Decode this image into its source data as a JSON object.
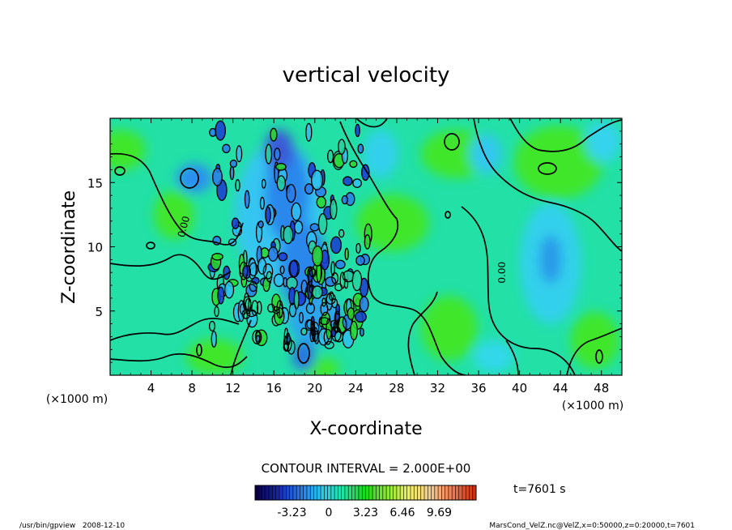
{
  "chart_data": {
    "type": "heatmap",
    "title": "vertical velocity",
    "xlabel": "X-coordinate",
    "ylabel": "Z-coordinate",
    "x_unit": "(×1000 m)",
    "y_unit": "(×1000 m)",
    "xlim": [
      0,
      50
    ],
    "ylim": [
      0,
      20
    ],
    "x_ticks": [
      4,
      8,
      12,
      16,
      20,
      24,
      28,
      32,
      36,
      40,
      44,
      48
    ],
    "y_ticks": [
      5,
      10,
      15
    ],
    "contour_interval_label": "CONTOUR INTERVAL = 2.000E+00",
    "contour_labels": [
      {
        "text": "0.00",
        "x": 7.5,
        "y": 11.5,
        "rotate": -75
      },
      {
        "text": "0.00",
        "x": 38.6,
        "y": 8.0,
        "rotate": -90
      }
    ],
    "colorbar": {
      "min": -6.46,
      "max": 12.92,
      "ticks": [
        "-3.23",
        "0",
        "3.23",
        "6.46",
        "9.69"
      ],
      "tick_values": [
        -3.23,
        0,
        3.23,
        6.46,
        9.69
      ],
      "colors": [
        "#0a0040",
        "#1428b4",
        "#2878e8",
        "#28c8f0",
        "#1ee6a0",
        "#19d819",
        "#8ce632",
        "#f0f064",
        "#f5c88c",
        "#f07850",
        "#c83214"
      ]
    },
    "time_label": "t=7601 s",
    "field_background": "#22e0a6",
    "regions": [
      {
        "kind": "blue-patch",
        "x": 18.5,
        "y": 12,
        "rx": 5,
        "ry": 5
      },
      {
        "kind": "blue-patch",
        "x": 19,
        "y": 7,
        "rx": 4,
        "ry": 4
      },
      {
        "kind": "blue-patch",
        "x": 42,
        "y": 10,
        "rx": 4,
        "ry": 6
      }
    ]
  },
  "footer": {
    "left": "/usr/bin/gpview   2008-12-10",
    "right": "MarsCond_VelZ.nc@VelZ,x=0:50000,z=0:20000,t=7601"
  }
}
